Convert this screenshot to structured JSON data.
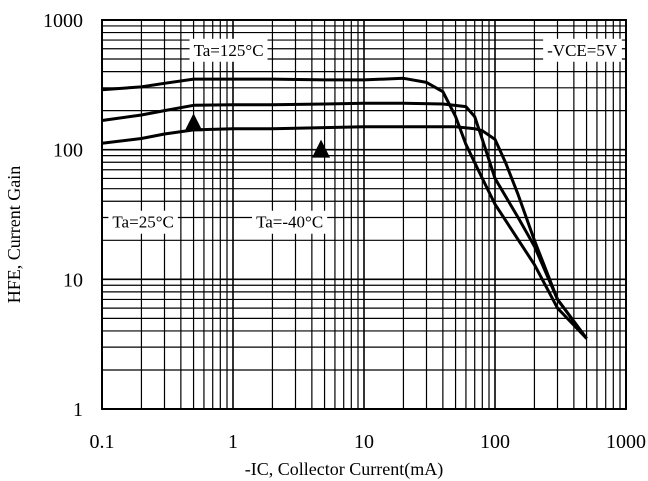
{
  "chart_data": {
    "type": "line",
    "x_scale": "log",
    "y_scale": "log",
    "xlim": [
      0.1,
      1000
    ],
    "ylim": [
      1,
      1000
    ],
    "grid": true,
    "xlabel": "-IC, Collector Current(mA)",
    "ylabel": "HFE, Current Gain",
    "x_ticks": [
      {
        "value": 0.1,
        "label": "0.1"
      },
      {
        "value": 1,
        "label": "1"
      },
      {
        "value": 10,
        "label": "10"
      },
      {
        "value": 100,
        "label": "100"
      },
      {
        "value": 1000,
        "label": "1000"
      }
    ],
    "y_ticks": [
      {
        "value": 1,
        "label": "1"
      },
      {
        "value": 10,
        "label": "10"
      },
      {
        "value": 100,
        "label": "100"
      },
      {
        "value": 1000,
        "label": "1000"
      }
    ],
    "series": [
      {
        "name": "Ta=125°C",
        "x": [
          0.1,
          0.2,
          0.3,
          0.5,
          1,
          2,
          5,
          10,
          20,
          30,
          40,
          50,
          60,
          80,
          100,
          200,
          300,
          500
        ],
        "y": [
          290,
          305,
          325,
          350,
          350,
          350,
          345,
          345,
          355,
          330,
          280,
          180,
          110,
          60,
          38,
          13,
          6,
          3.5
        ]
      },
      {
        "name": "Ta=25°C",
        "x": [
          0.1,
          0.2,
          0.3,
          0.5,
          1,
          2,
          5,
          10,
          20,
          40,
          60,
          70,
          80,
          100,
          150,
          200,
          300,
          500
        ],
        "y": [
          168,
          185,
          200,
          220,
          222,
          222,
          225,
          228,
          228,
          225,
          215,
          180,
          120,
          60,
          30,
          18,
          7,
          3.5
        ]
      },
      {
        "name": "Ta=-40°C",
        "x": [
          0.1,
          0.2,
          0.3,
          0.5,
          1,
          2,
          5,
          10,
          20,
          50,
          70,
          80,
          100,
          120,
          150,
          200,
          300,
          500
        ],
        "y": [
          112,
          122,
          132,
          142,
          145,
          145,
          148,
          150,
          150,
          150,
          145,
          140,
          120,
          80,
          45,
          20,
          7,
          3.5
        ]
      }
    ],
    "annotations": [
      {
        "text": "Ta=125°C",
        "x": 0.5,
        "y": 530
      },
      {
        "text": "-VCE=5V",
        "x": 250,
        "y": 530
      },
      {
        "text": "Ta=25°C",
        "x": 0.12,
        "y": 25
      },
      {
        "text": "Ta=-40°C",
        "x": 1.5,
        "y": 25
      }
    ],
    "markers": [
      {
        "shape": "triangle",
        "x": 0.5,
        "y": 160
      },
      {
        "shape": "triangle",
        "x": 4.7,
        "y": 100
      }
    ]
  }
}
